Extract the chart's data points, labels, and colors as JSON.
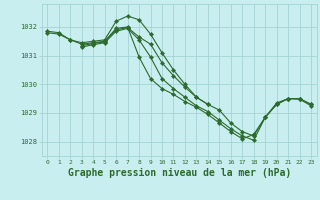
{
  "background_color": "#c8eef0",
  "grid_color": "#9ecfcf",
  "line_color": "#2d6a2d",
  "xlabel": "Graphe pression niveau de la mer (hPa)",
  "xlabel_fontsize": 7,
  "ylabel_ticks": [
    1028,
    1029,
    1030,
    1031,
    1032
  ],
  "xlim": [
    -0.5,
    23.5
  ],
  "ylim": [
    1027.5,
    1032.8
  ],
  "series": [
    {
      "x": [
        0,
        1,
        2,
        3,
        4,
        5,
        6,
        7,
        8,
        9,
        10,
        11,
        12,
        13,
        14
      ],
      "y": [
        1031.85,
        1031.8,
        1031.55,
        1031.45,
        1031.5,
        1031.55,
        1032.2,
        1032.38,
        1032.25,
        1031.75,
        1031.1,
        1030.5,
        1030.0,
        1029.55,
        1029.3
      ]
    },
    {
      "x": [
        0,
        1,
        2,
        3,
        4,
        5,
        6,
        7,
        8,
        9,
        10,
        11,
        12,
        13,
        14,
        15,
        16,
        17,
        18,
        19,
        20,
        21,
        22,
        23
      ],
      "y": [
        1031.8,
        1031.75,
        1031.55,
        1031.4,
        1031.45,
        1031.5,
        1031.95,
        1032.0,
        1030.95,
        1030.2,
        1029.85,
        1029.65,
        1029.4,
        1029.2,
        1028.95,
        1028.65,
        1028.35,
        1028.1,
        1028.25,
        1028.85,
        1029.35,
        1029.5,
        1029.5,
        1029.3
      ]
    },
    {
      "x": [
        3,
        4,
        5,
        6,
        7,
        8,
        9,
        10,
        11,
        12,
        13,
        14,
        15,
        16,
        17,
        18,
        19,
        20,
        21,
        22,
        23
      ],
      "y": [
        1031.35,
        1031.42,
        1031.48,
        1031.9,
        1031.98,
        1031.65,
        1031.4,
        1030.75,
        1030.3,
        1029.9,
        1029.55,
        1029.3,
        1029.1,
        1028.65,
        1028.35,
        1028.2,
        1028.85,
        1029.3,
        1029.5,
        1029.5,
        1029.3
      ]
    },
    {
      "x": [
        3,
        4,
        5,
        6,
        7,
        8,
        9,
        10,
        11,
        12,
        13,
        14,
        15,
        16,
        17,
        18,
        19,
        20,
        21,
        22,
        23
      ],
      "y": [
        1031.3,
        1031.38,
        1031.45,
        1031.85,
        1031.95,
        1031.55,
        1030.95,
        1030.2,
        1029.85,
        1029.55,
        1029.25,
        1029.05,
        1028.75,
        1028.45,
        1028.2,
        1028.05,
        1028.85,
        1029.3,
        1029.5,
        1029.48,
        1029.25
      ]
    }
  ]
}
